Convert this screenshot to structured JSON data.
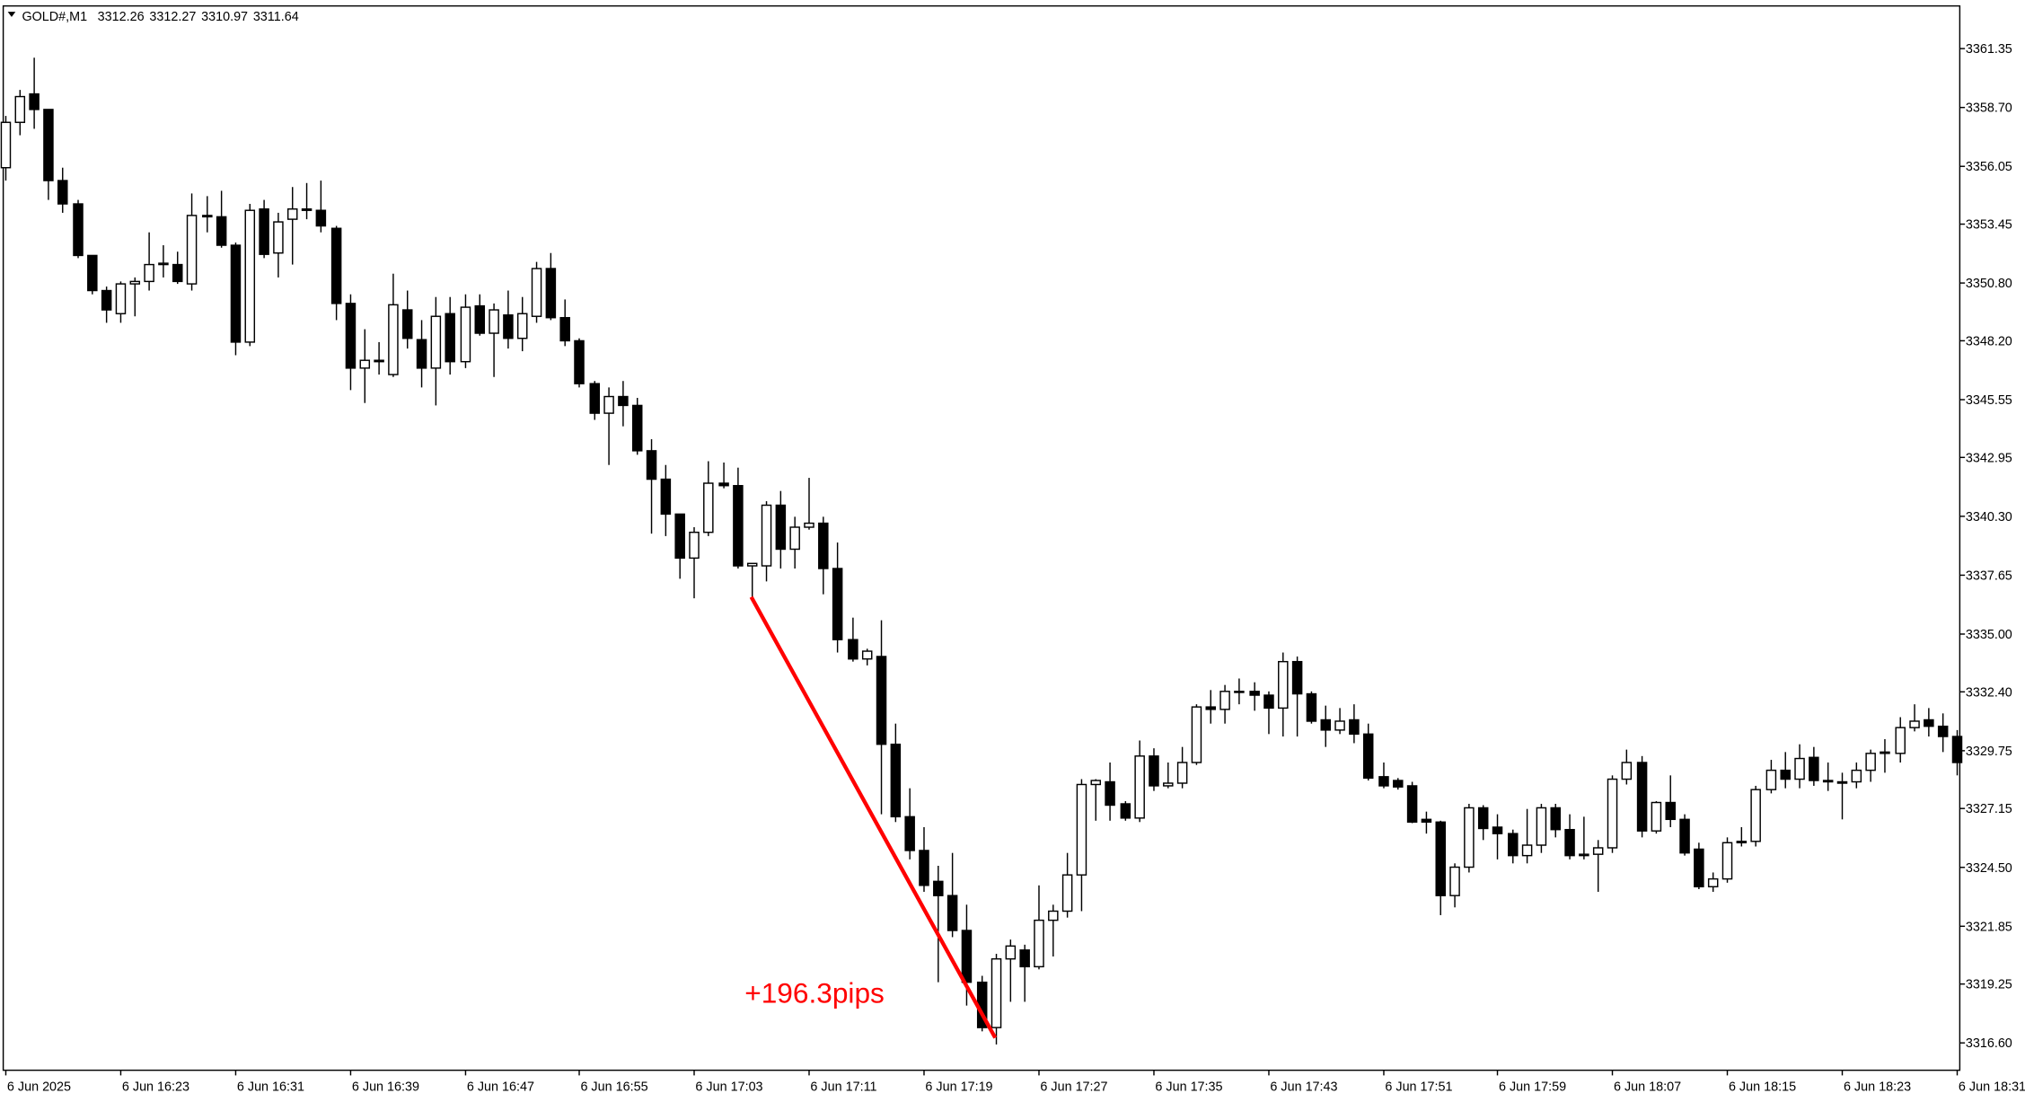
{
  "chart_data": {
    "type": "candlestick",
    "symbol": "GOLD#,M1",
    "header_values": [
      3312.26,
      3312.27,
      3310.97,
      3311.64
    ],
    "categories": [
      "6 Jun 2025",
      null,
      null,
      null,
      null,
      null,
      null,
      null,
      "6 Jun 16:23",
      null,
      null,
      null,
      null,
      null,
      null,
      null,
      "6 Jun 16:31",
      null,
      null,
      null,
      null,
      null,
      null,
      null,
      "6 Jun 16:39",
      null,
      null,
      null,
      null,
      null,
      null,
      null,
      "6 Jun 16:47",
      null,
      null,
      null,
      null,
      null,
      null,
      null,
      "6 Jun 16:55",
      null,
      null,
      null,
      null,
      null,
      null,
      null,
      "6 Jun 17:03",
      null,
      null,
      null,
      null,
      null,
      null,
      null,
      "6 Jun 17:11",
      null,
      null,
      null,
      null,
      null,
      null,
      null,
      "6 Jun 17:19",
      null,
      null,
      null,
      null,
      null,
      null,
      null,
      "6 Jun 17:27",
      null,
      null,
      null,
      null,
      null,
      null,
      null,
      "6 Jun 17:35",
      null,
      null,
      null,
      null,
      null,
      null,
      null,
      "6 Jun 17:43",
      null,
      null,
      null,
      null,
      null,
      null,
      null,
      "6 Jun 17:51",
      null,
      null,
      null,
      null,
      null,
      null,
      null,
      "6 Jun 17:59",
      null,
      null,
      null,
      null,
      null,
      null,
      null,
      "6 Jun 18:07",
      null,
      null,
      null,
      null,
      null,
      null,
      null,
      "6 Jun 18:15",
      null,
      null,
      null,
      null,
      null,
      null,
      null,
      "6 Jun 18:23",
      null,
      null,
      null,
      null,
      null,
      null,
      null,
      "6 Jun 18:31"
    ],
    "open": [
      3355.99,
      3358.03,
      3359.31,
      3358.61,
      3355.41,
      3354.36,
      3352.04,
      3350.46,
      3349.42,
      3350.76,
      3350.87,
      3351.63,
      3351.63,
      3350.76,
      3353.84,
      3353.78,
      3352.5,
      3348.14,
      3354.13,
      3352.15,
      3353.67,
      3354.13,
      3354.07,
      3353.26,
      3349.88,
      3346.97,
      3347.32,
      3346.68,
      3349.59,
      3348.25,
      3346.97,
      3349.42,
      3347.26,
      3349.77,
      3348.54,
      3349.36,
      3348.31,
      3349.3,
      3351.45,
      3349.24,
      3348.2,
      3346.27,
      3344.94,
      3345.69,
      3345.29,
      3343.25,
      3341.97,
      3340.4,
      3338.42,
      3339.58,
      3341.79,
      3341.68,
      3338.07,
      3338.07,
      3340.8,
      3338.82,
      3339.81,
      3339.99,
      3337.95,
      3334.75,
      3333.88,
      3333.99,
      3330.04,
      3326.78,
      3325.26,
      3323.87,
      3323.23,
      3321.66,
      3319.33,
      3317.29,
      3320.38,
      3320.78,
      3320.03,
      3322.12,
      3322.53,
      3324.16,
      3328.23,
      3328.35,
      3327.36,
      3326.72,
      3329.51,
      3328.17,
      3328.29,
      3329.22,
      3331.72,
      3331.61,
      3332.42,
      3332.42,
      3332.25,
      3331.67,
      3333.76,
      3332.31,
      3331.14,
      3330.68,
      3331.14,
      3330.5,
      3328.58,
      3328.41,
      3328.17,
      3326.66,
      3326.54,
      3323.23,
      3324.51,
      3327.18,
      3326.31,
      3326.02,
      3325.03,
      3325.5,
      3327.18,
      3326.2,
      3325.03,
      3325.09,
      3325.38,
      3328.47,
      3329.22,
      3326.14,
      3327.42,
      3326.66,
      3325.32,
      3323.63,
      3323.98,
      3325.61,
      3325.67,
      3328.0,
      3328.87,
      3328.47,
      3329.45,
      3328.41,
      3328.35,
      3328.35,
      3328.87,
      3329.63,
      3329.63,
      3330.79,
      3331.14,
      3330.85,
      3330.39
    ],
    "high": [
      3358.32,
      3359.49,
      3360.94,
      3358.61,
      3355.99,
      3354.54,
      3352.04,
      3350.64,
      3350.87,
      3351.05,
      3353.08,
      3352.5,
      3352.21,
      3354.83,
      3354.71,
      3354.95,
      3352.62,
      3354.36,
      3354.54,
      3353.96,
      3355.12,
      3355.3,
      3355.41,
      3353.37,
      3350.29,
      3348.72,
      3348.14,
      3351.22,
      3350.46,
      3349.13,
      3350.17,
      3350.17,
      3350.29,
      3350.29,
      3349.88,
      3350.46,
      3350.17,
      3351.75,
      3352.15,
      3350.06,
      3348.31,
      3346.39,
      3346.1,
      3346.39,
      3345.63,
      3343.77,
      3342.61,
      3340.4,
      3339.81,
      3342.78,
      3342.72,
      3342.49,
      3338.18,
      3340.98,
      3341.44,
      3340.28,
      3342.03,
      3340.28,
      3339.12,
      3335.74,
      3334.34,
      3335.62,
      3330.97,
      3328.06,
      3326.31,
      3324.57,
      3325.15,
      3322.82,
      3319.62,
      3320.61,
      3321.25,
      3321.02,
      3323.69,
      3322.82,
      3325.15,
      3328.47,
      3328.47,
      3329.22,
      3327.48,
      3330.21,
      3329.86,
      3329.22,
      3329.92,
      3331.84,
      3332.48,
      3332.71,
      3333.0,
      3332.83,
      3332.42,
      3334.17,
      3333.99,
      3332.42,
      3331.78,
      3331.67,
      3331.84,
      3330.97,
      3329.22,
      3328.52,
      3328.35,
      3327.01,
      3326.6,
      3324.68,
      3327.36,
      3327.3,
      3326.89,
      3326.2,
      3327.13,
      3327.36,
      3327.36,
      3326.89,
      3326.78,
      3325.73,
      3328.64,
      3329.8,
      3329.51,
      3327.48,
      3328.64,
      3326.89,
      3325.61,
      3324.27,
      3325.85,
      3326.31,
      3328.17,
      3329.34,
      3329.69,
      3330.04,
      3329.92,
      3329.22,
      3328.76,
      3329.22,
      3329.8,
      3330.27,
      3331.26,
      3331.84,
      3331.67,
      3331.43,
      3330.68
    ],
    "low": [
      3355.41,
      3357.45,
      3357.74,
      3354.54,
      3353.96,
      3351.92,
      3350.29,
      3349.01,
      3349.01,
      3349.3,
      3350.46,
      3351.05,
      3350.76,
      3350.46,
      3353.08,
      3352.39,
      3347.55,
      3347.96,
      3351.92,
      3351.05,
      3351.63,
      3353.67,
      3353.08,
      3349.13,
      3345.98,
      3345.4,
      3346.68,
      3346.57,
      3347.85,
      3346.1,
      3345.29,
      3346.68,
      3346.97,
      3348.43,
      3346.57,
      3347.85,
      3347.73,
      3349.01,
      3349.13,
      3347.96,
      3346.1,
      3344.64,
      3342.61,
      3344.35,
      3343.07,
      3339.52,
      3339.41,
      3337.49,
      3336.61,
      3339.41,
      3341.56,
      3337.95,
      3336.61,
      3337.37,
      3337.95,
      3337.95,
      3339.7,
      3336.79,
      3334.17,
      3333.76,
      3333.59,
      3326.89,
      3326.54,
      3324.86,
      3323.4,
      3319.33,
      3321.36,
      3318.28,
      3317.12,
      3316.53,
      3318.45,
      3318.45,
      3319.91,
      3320.49,
      3322.24,
      3322.53,
      3326.6,
      3326.6,
      3326.6,
      3326.54,
      3327.94,
      3328.06,
      3328.06,
      3329.11,
      3330.97,
      3330.97,
      3331.84,
      3331.55,
      3330.5,
      3330.39,
      3330.39,
      3330.97,
      3329.92,
      3330.5,
      3330.09,
      3328.41,
      3328.06,
      3328.0,
      3326.49,
      3326.02,
      3322.35,
      3322.7,
      3324.27,
      3325.73,
      3324.86,
      3324.68,
      3324.68,
      3325.15,
      3325.85,
      3324.86,
      3324.86,
      3323.4,
      3325.15,
      3328.23,
      3325.85,
      3326.02,
      3326.31,
      3325.03,
      3323.52,
      3323.4,
      3323.81,
      3325.44,
      3325.44,
      3327.83,
      3328.06,
      3328.06,
      3328.17,
      3327.94,
      3326.66,
      3328.06,
      3328.35,
      3328.76,
      3329.22,
      3330.62,
      3330.39,
      3329.69,
      3328.64
    ],
    "close": [
      3358.03,
      3359.19,
      3358.61,
      3355.41,
      3354.36,
      3352.04,
      3350.46,
      3349.59,
      3350.76,
      3350.87,
      3351.63,
      3351.69,
      3350.87,
      3353.84,
      3353.78,
      3352.5,
      3348.14,
      3354.07,
      3352.09,
      3353.55,
      3354.13,
      3354.07,
      3353.37,
      3349.88,
      3346.97,
      3347.32,
      3347.26,
      3349.82,
      3348.31,
      3346.97,
      3349.3,
      3347.26,
      3349.71,
      3348.54,
      3349.59,
      3348.31,
      3349.42,
      3351.45,
      3349.24,
      3348.2,
      3346.27,
      3344.94,
      3345.69,
      3345.29,
      3343.25,
      3341.97,
      3340.4,
      3338.42,
      3339.58,
      3341.79,
      3341.68,
      3338.07,
      3338.18,
      3340.8,
      3338.82,
      3339.81,
      3339.99,
      3337.95,
      3334.75,
      3333.88,
      3334.23,
      3330.04,
      3326.78,
      3325.26,
      3323.69,
      3323.23,
      3321.66,
      3319.33,
      3317.29,
      3320.38,
      3320.96,
      3320.03,
      3322.12,
      3322.53,
      3324.16,
      3328.23,
      3328.41,
      3327.3,
      3326.72,
      3329.51,
      3328.17,
      3328.29,
      3329.22,
      3331.72,
      3331.61,
      3332.42,
      3332.42,
      3332.25,
      3331.67,
      3333.76,
      3332.31,
      3331.08,
      3330.68,
      3331.08,
      3330.5,
      3328.52,
      3328.17,
      3328.12,
      3326.54,
      3326.54,
      3323.23,
      3324.51,
      3327.18,
      3326.25,
      3326.02,
      3325.03,
      3325.5,
      3327.18,
      3326.2,
      3325.03,
      3325.09,
      3325.38,
      3328.47,
      3329.22,
      3326.14,
      3327.42,
      3326.66,
      3325.15,
      3323.63,
      3323.98,
      3325.61,
      3325.67,
      3328.0,
      3328.87,
      3328.47,
      3329.4,
      3328.41,
      3328.35,
      3328.29,
      3328.87,
      3329.63,
      3329.69,
      3330.79,
      3331.08,
      3330.85,
      3330.39,
      3329.22
    ],
    "up_color": "#ffffff",
    "down_color": "#000000",
    "outline_color": "#000000",
    "ylim": [
      3315.37,
      3363.27
    ],
    "yticks": [
      3361.35,
      {
        "value": 3358.7,
        "label": "3358.70"
      },
      3356.05,
      3353.45,
      {
        "value": 3350.8,
        "label": "3350.80"
      },
      {
        "value": 3348.2,
        "label": "3348.20"
      },
      3345.55,
      3342.95,
      {
        "value": 3340.3,
        "label": "3340.30"
      },
      3337.65,
      {
        "value": 3335.0,
        "label": "3335.00"
      },
      {
        "value": 3332.4,
        "label": "3332.40"
      },
      3329.75,
      3327.15,
      {
        "value": 3324.5,
        "label": "3324.50"
      },
      {
        "value": 3321.85,
        "label": "3321.85"
      },
      {
        "value": 3319.25,
        "label": "3319.25"
      },
      {
        "value": 3316.6,
        "label": "3316.60"
      }
    ],
    "grid": false,
    "trendline": {
      "start": [
        52,
        3336.67
      ],
      "end": [
        69,
        3316.83
      ],
      "color": "#ff0000"
    },
    "annotation": {
      "text": "+196.3pips",
      "color": "#ff0000"
    }
  }
}
